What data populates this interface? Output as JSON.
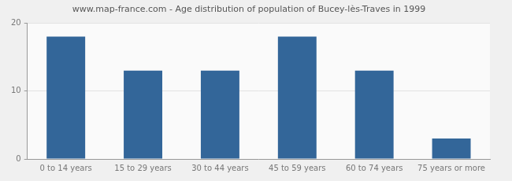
{
  "chart_data": {
    "type": "bar",
    "title": "www.map-france.com - Age distribution of population of Bucey-lès-Traves in 1999",
    "categories": [
      "0 to 14 years",
      "15 to 29 years",
      "30 to 44 years",
      "45 to 59 years",
      "60 to 74 years",
      "75 years or more"
    ],
    "values": [
      18,
      13,
      13,
      18,
      13,
      3
    ],
    "color": "#336699",
    "ylim": [
      0,
      20
    ],
    "yticks": [
      0,
      10,
      20
    ],
    "grid": true
  }
}
